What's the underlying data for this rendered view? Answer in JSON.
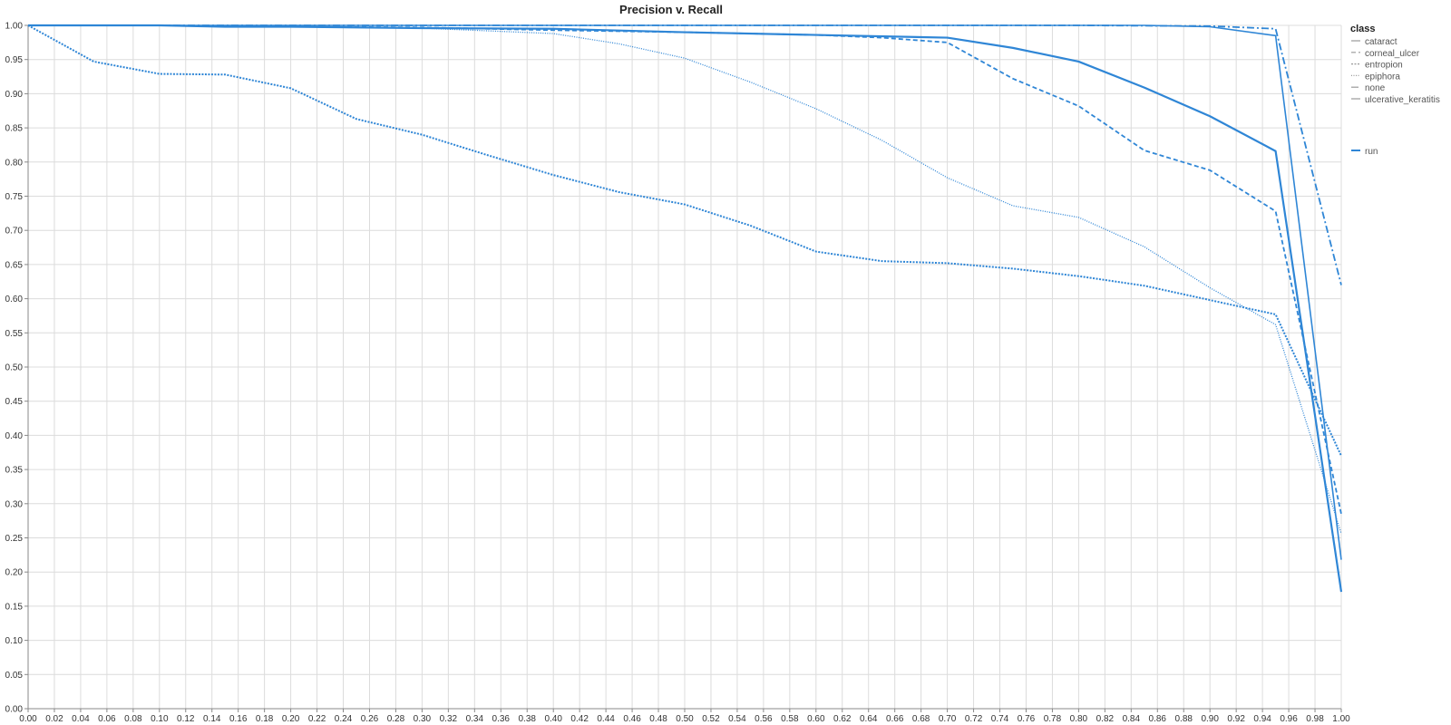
{
  "chart_data": {
    "type": "line",
    "title": "Precision v. Recall",
    "xlabel": "",
    "ylabel": "",
    "xlim": [
      0,
      1
    ],
    "ylim": [
      0,
      1
    ],
    "grid": true,
    "legend_position": "top-right",
    "x_ticks": [
      "0.00",
      "0.02",
      "0.04",
      "0.06",
      "0.08",
      "0.10",
      "0.12",
      "0.14",
      "0.16",
      "0.18",
      "0.20",
      "0.22",
      "0.24",
      "0.26",
      "0.28",
      "0.30",
      "0.32",
      "0.34",
      "0.36",
      "0.38",
      "0.40",
      "0.42",
      "0.44",
      "0.46",
      "0.48",
      "0.50",
      "0.52",
      "0.54",
      "0.56",
      "0.58",
      "0.60",
      "0.62",
      "0.64",
      "0.66",
      "0.68",
      "0.70",
      "0.72",
      "0.74",
      "0.76",
      "0.78",
      "0.80",
      "0.82",
      "0.84",
      "0.86",
      "0.88",
      "0.90",
      "0.92",
      "0.94",
      "0.96",
      "0.98",
      "1.00"
    ],
    "y_ticks": [
      "0.00",
      "0.05",
      "0.10",
      "0.15",
      "0.20",
      "0.25",
      "0.30",
      "0.35",
      "0.40",
      "0.45",
      "0.50",
      "0.55",
      "0.60",
      "0.65",
      "0.70",
      "0.75",
      "0.80",
      "0.85",
      "0.90",
      "0.95",
      "1.00"
    ],
    "color": "#2f86d6",
    "legend": {
      "class_title": "class",
      "classes": [
        {
          "name": "cataract",
          "dash": "solid"
        },
        {
          "name": "corneal_ulcer",
          "dash": "dashed"
        },
        {
          "name": "entropion",
          "dash": "dotted"
        },
        {
          "name": "epiphora",
          "dash": "fine-dotted"
        },
        {
          "name": "none",
          "dash": "dashdot"
        },
        {
          "name": "ulcerative_keratitis",
          "dash": "solid-thin"
        }
      ],
      "run_label": "run"
    },
    "series": [
      {
        "name": "cataract",
        "dash": "solid",
        "x": [
          0,
          0.05,
          0.1,
          0.15,
          0.2,
          0.3,
          0.4,
          0.5,
          0.6,
          0.7,
          0.75,
          0.8,
          0.85,
          0.9,
          0.95,
          1.0
        ],
        "y": [
          1.0,
          1.0,
          1.0,
          0.998,
          0.998,
          0.996,
          0.995,
          0.99,
          0.986,
          0.982,
          0.967,
          0.947,
          0.909,
          0.867,
          0.816,
          0.171
        ]
      },
      {
        "name": "corneal_ulcer",
        "dash": "dashed",
        "x": [
          0,
          0.1,
          0.2,
          0.3,
          0.4,
          0.5,
          0.6,
          0.65,
          0.7,
          0.75,
          0.8,
          0.85,
          0.9,
          0.95,
          1.0
        ],
        "y": [
          1.0,
          1.0,
          0.998,
          0.997,
          0.993,
          0.99,
          0.986,
          0.982,
          0.975,
          0.922,
          0.882,
          0.817,
          0.788,
          0.728,
          0.285
        ]
      },
      {
        "name": "entropion",
        "dash": "dotted",
        "x": [
          0,
          0.05,
          0.1,
          0.15,
          0.2,
          0.25,
          0.3,
          0.35,
          0.4,
          0.45,
          0.5,
          0.55,
          0.6,
          0.65,
          0.7,
          0.75,
          0.8,
          0.85,
          0.9,
          0.95,
          1.0
        ],
        "y": [
          1.0,
          0.947,
          0.929,
          0.928,
          0.908,
          0.863,
          0.84,
          0.81,
          0.781,
          0.756,
          0.738,
          0.707,
          0.669,
          0.655,
          0.652,
          0.644,
          0.633,
          0.619,
          0.598,
          0.577,
          0.37
        ]
      },
      {
        "name": "epiphora",
        "dash": "fine-dotted",
        "x": [
          0,
          0.1,
          0.2,
          0.3,
          0.35,
          0.4,
          0.45,
          0.5,
          0.55,
          0.6,
          0.65,
          0.7,
          0.75,
          0.8,
          0.85,
          0.9,
          0.95,
          1.0
        ],
        "y": [
          1.0,
          1.0,
          0.998,
          0.996,
          0.992,
          0.988,
          0.973,
          0.952,
          0.917,
          0.878,
          0.832,
          0.777,
          0.736,
          0.719,
          0.676,
          0.616,
          0.562,
          0.256
        ]
      },
      {
        "name": "none",
        "dash": "dashdot",
        "x": [
          0,
          0.1,
          0.2,
          0.3,
          0.4,
          0.5,
          0.6,
          0.7,
          0.8,
          0.9,
          0.95,
          1.0
        ],
        "y": [
          1.0,
          1.0,
          1.0,
          1.0,
          1.0,
          1.0,
          1.0,
          1.0,
          1.0,
          0.999,
          0.995,
          0.62
        ]
      },
      {
        "name": "ulcerative_keratitis",
        "dash": "solid-thin",
        "x": [
          0,
          0.1,
          0.2,
          0.3,
          0.4,
          0.5,
          0.6,
          0.7,
          0.8,
          0.85,
          0.9,
          0.95,
          1.0
        ],
        "y": [
          1.0,
          1.0,
          1.0,
          1.0,
          1.0,
          1.0,
          1.0,
          1.0,
          1.0,
          1.0,
          0.998,
          0.985,
          0.218
        ]
      }
    ]
  }
}
